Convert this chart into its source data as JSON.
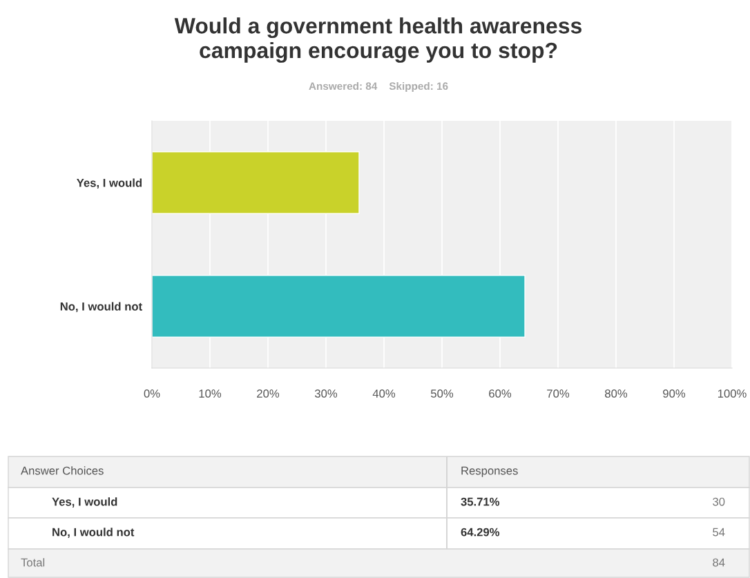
{
  "chart_data": {
    "type": "bar",
    "orientation": "horizontal",
    "title": "Would a government health awareness\ncampaign encourage you to stop?",
    "subtitle": "Answered: 84    Skipped: 16",
    "categories": [
      "Yes, I would",
      "No, I would not"
    ],
    "values": [
      35.71,
      64.29
    ],
    "colors": [
      "#c9d22a",
      "#33bcbe"
    ],
    "xlim": [
      0,
      100
    ],
    "xticks": [
      {
        "value": 0,
        "label": "0%"
      },
      {
        "value": 10,
        "label": "10%"
      },
      {
        "value": 20,
        "label": "20%"
      },
      {
        "value": 30,
        "label": "30%"
      },
      {
        "value": 40,
        "label": "40%"
      },
      {
        "value": 50,
        "label": "50%"
      },
      {
        "value": 60,
        "label": "60%"
      },
      {
        "value": 70,
        "label": "70%"
      },
      {
        "value": 80,
        "label": "80%"
      },
      {
        "value": 90,
        "label": "90%"
      },
      {
        "value": 100,
        "label": "100%"
      }
    ],
    "grid": "x",
    "legend": false,
    "annotations": [
      "Answer Choices",
      "Responses",
      "30",
      "54",
      "Total",
      "84",
      "35.71%",
      "64.29%"
    ]
  }
}
